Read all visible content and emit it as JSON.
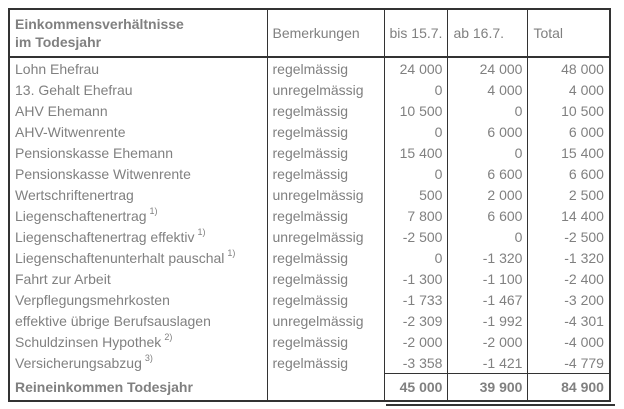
{
  "colors": {
    "text_gray": "#808080",
    "border_dark": "#333333",
    "background": "#ffffff"
  },
  "table": {
    "header": {
      "title": "Einkommensverhältnisse\nim Todesjahr",
      "bemerkungen": "Bemerkungen",
      "bis": "bis 15.7.",
      "ab": "ab 16.7.",
      "total": "Total"
    },
    "rows": [
      {
        "label": "Lohn Ehefrau",
        "sup": "",
        "bemerkung": "regelmässig",
        "bis": "24 000",
        "ab": "24 000",
        "total": "48 000"
      },
      {
        "label": "13. Gehalt Ehefrau",
        "sup": "",
        "bemerkung": "unregelmässig",
        "bis": "0",
        "ab": "4 000",
        "total": "4 000"
      },
      {
        "label": "AHV Ehemann",
        "sup": "",
        "bemerkung": "regelmässig",
        "bis": "10 500",
        "ab": "0",
        "total": "10 500"
      },
      {
        "label": "AHV-Witwenrente",
        "sup": "",
        "bemerkung": "regelmässig",
        "bis": "0",
        "ab": "6 000",
        "total": "6 000"
      },
      {
        "label": "Pensionskasse Ehemann",
        "sup": "",
        "bemerkung": "regelmässig",
        "bis": "15 400",
        "ab": "0",
        "total": "15 400"
      },
      {
        "label": "Pensionskasse Witwenrente",
        "sup": "",
        "bemerkung": "regelmässig",
        "bis": "0",
        "ab": "6 600",
        "total": "6 600"
      },
      {
        "label": "Wertschriftenertrag",
        "sup": "",
        "bemerkung": "unregelmässig",
        "bis": "500",
        "ab": "2 000",
        "total": "2 500"
      },
      {
        "label": "Liegenschaftenertrag",
        "sup": "1)",
        "bemerkung": "regelmässig",
        "bis": "7 800",
        "ab": "6 600",
        "total": "14 400"
      },
      {
        "label": "Liegenschaftenertrag effektiv",
        "sup": "1)",
        "bemerkung": "unregelmässig",
        "bis": "-2 500",
        "ab": "0",
        "total": "-2 500"
      },
      {
        "label": "Liegenschaftenunterhalt pauschal",
        "sup": "1)",
        "bemerkung": "regelmässig",
        "bis": "0",
        "ab": "-1 320",
        "total": "-1 320"
      },
      {
        "label": "Fahrt zur Arbeit",
        "sup": "",
        "bemerkung": "regelmässig",
        "bis": "-1 300",
        "ab": "-1 100",
        "total": "-2 400"
      },
      {
        "label": "Verpflegungsmehrkosten",
        "sup": "",
        "bemerkung": "regelmässig",
        "bis": "-1 733",
        "ab": "-1 467",
        "total": "-3 200"
      },
      {
        "label": "effektive übrige Berufsauslagen",
        "sup": "",
        "bemerkung": "unregelmässig",
        "bis": "-2 309",
        "ab": "-1 992",
        "total": "-4 301"
      },
      {
        "label": "Schuldzinsen Hypothek",
        "sup": "2)",
        "bemerkung": "regelmässig",
        "bis": "-2 000",
        "ab": "-2 000",
        "total": "-4 000"
      },
      {
        "label": "Versicherungsabzug",
        "sup": "3)",
        "bemerkung": "regelmässig",
        "bis": "-3 358",
        "ab": "-1 421",
        "total": "-4 779"
      }
    ],
    "total_row": {
      "label": "Reineinkommen Todesjahr",
      "bemerkung": "",
      "bis": "45 000",
      "ab": "39 900",
      "total": "84 900"
    }
  }
}
